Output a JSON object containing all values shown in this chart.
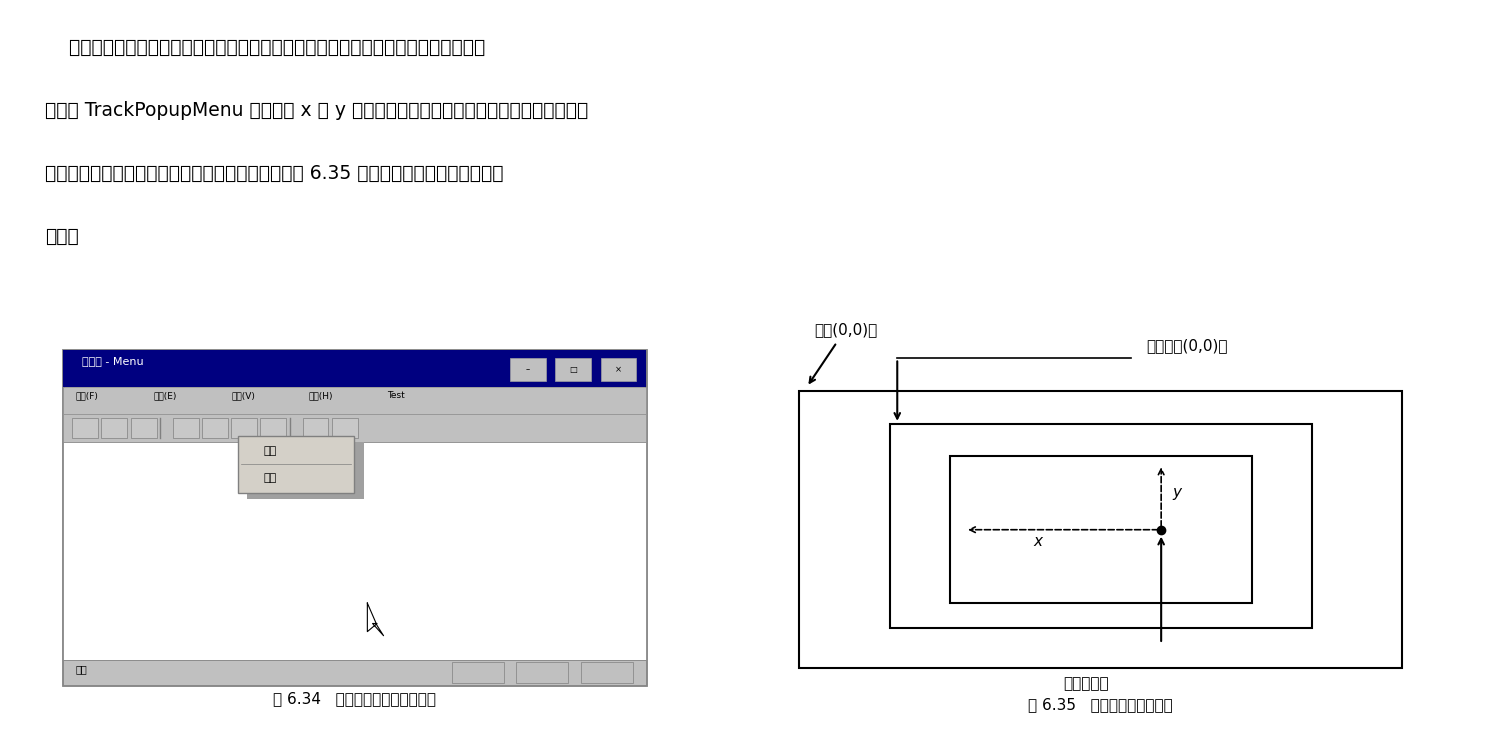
{
  "fig634_caption": "图 6.34   自定义的快捷菜单的显示",
  "fig635_caption": "图 6.35   窗口坐标和屏幕坐标",
  "win_title": "无标题 - Menu",
  "menu_items": [
    "文件(F)",
    "编辑(E)",
    "查看(V)",
    "帮助(H)",
    "Test"
  ],
  "context_menu_item1": "显示",
  "context_menu_item2": "退出",
  "status_bar_text": "就绪",
  "label_screen_origin": "屏幕(0,0)点",
  "label_window_origin": "程序窗口(0,0)点",
  "label_mouse_click": "鼠标单击点",
  "label_x": "x",
  "label_y": "y",
  "para_line1": "    但是，这个快捷菜单显示的位置好像不太对，并不是在鼠标右键单击点处显示的。这",
  "para_line2": "是因为 TrackPopupMenu 函数中的 x 和 y 参数都是屏幕坐标，而鼠标单击点处的坐标是窗",
  "para_line3": "口客户区坐标，即以程序窗口左上角为坐标原点。图 6.35 显示了窗口坐标和屏幕坐标的",
  "para_line4": "关系。",
  "bg_color": "#ffffff",
  "win_titlebar_color": "#000080",
  "win_bg_color": "#c0c0c0",
  "context_menu_color": "#d4d0c8",
  "status_bar_color": "#c0c0c0",
  "text_fontsize": 13.5,
  "caption_fontsize": 11
}
